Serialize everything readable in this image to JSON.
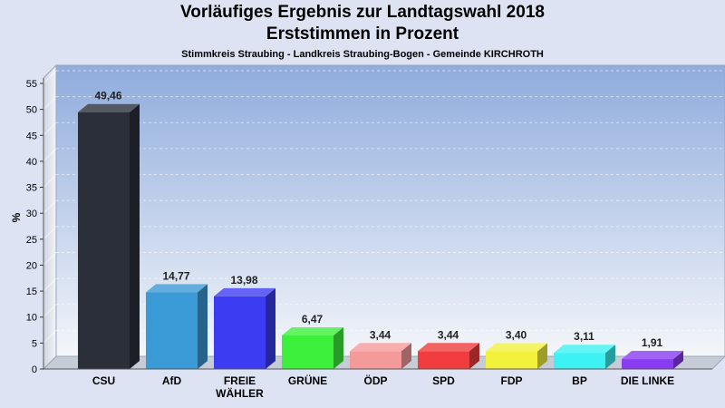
{
  "chart_data": {
    "type": "bar",
    "title": "Vorläufiges Ergebnis zur Landtagswahl 2018",
    "subtitle": "Erststimmen in Prozent",
    "caption": "Stimmkreis Straubing - Landkreis Straubing-Bogen - Gemeinde KIRCHROTH",
    "ylabel": "%",
    "xlabel": "",
    "ylim": [
      0,
      55
    ],
    "yticks": [
      "0",
      "5",
      "10",
      "15",
      "20",
      "25",
      "30",
      "35",
      "40",
      "45",
      "50",
      "55"
    ],
    "grid": true,
    "categories": [
      {
        "lines": [
          "CSU"
        ]
      },
      {
        "lines": [
          "AfD"
        ]
      },
      {
        "lines": [
          "FREIE",
          "WÄHLER"
        ]
      },
      {
        "lines": [
          "GRÜNE"
        ]
      },
      {
        "lines": [
          "ÖDP"
        ]
      },
      {
        "lines": [
          "SPD"
        ]
      },
      {
        "lines": [
          "FDP"
        ]
      },
      {
        "lines": [
          "BP"
        ]
      },
      {
        "lines": [
          "DIE LINKE"
        ]
      }
    ],
    "values": [
      49.46,
      14.77,
      13.98,
      6.47,
      3.44,
      3.44,
      3.4,
      3.11,
      1.91
    ],
    "labels": [
      "49,46",
      "14,77",
      "13,98",
      "6,47",
      "3,44",
      "3,44",
      "3,40",
      "3,11",
      "1,91"
    ],
    "colors": [
      "#2b2f3a",
      "#3a9ad6",
      "#3c3cf2",
      "#3cf03c",
      "#f59a9a",
      "#f03c3c",
      "#f2f23c",
      "#3cf2f2",
      "#8a3cf2"
    ]
  }
}
